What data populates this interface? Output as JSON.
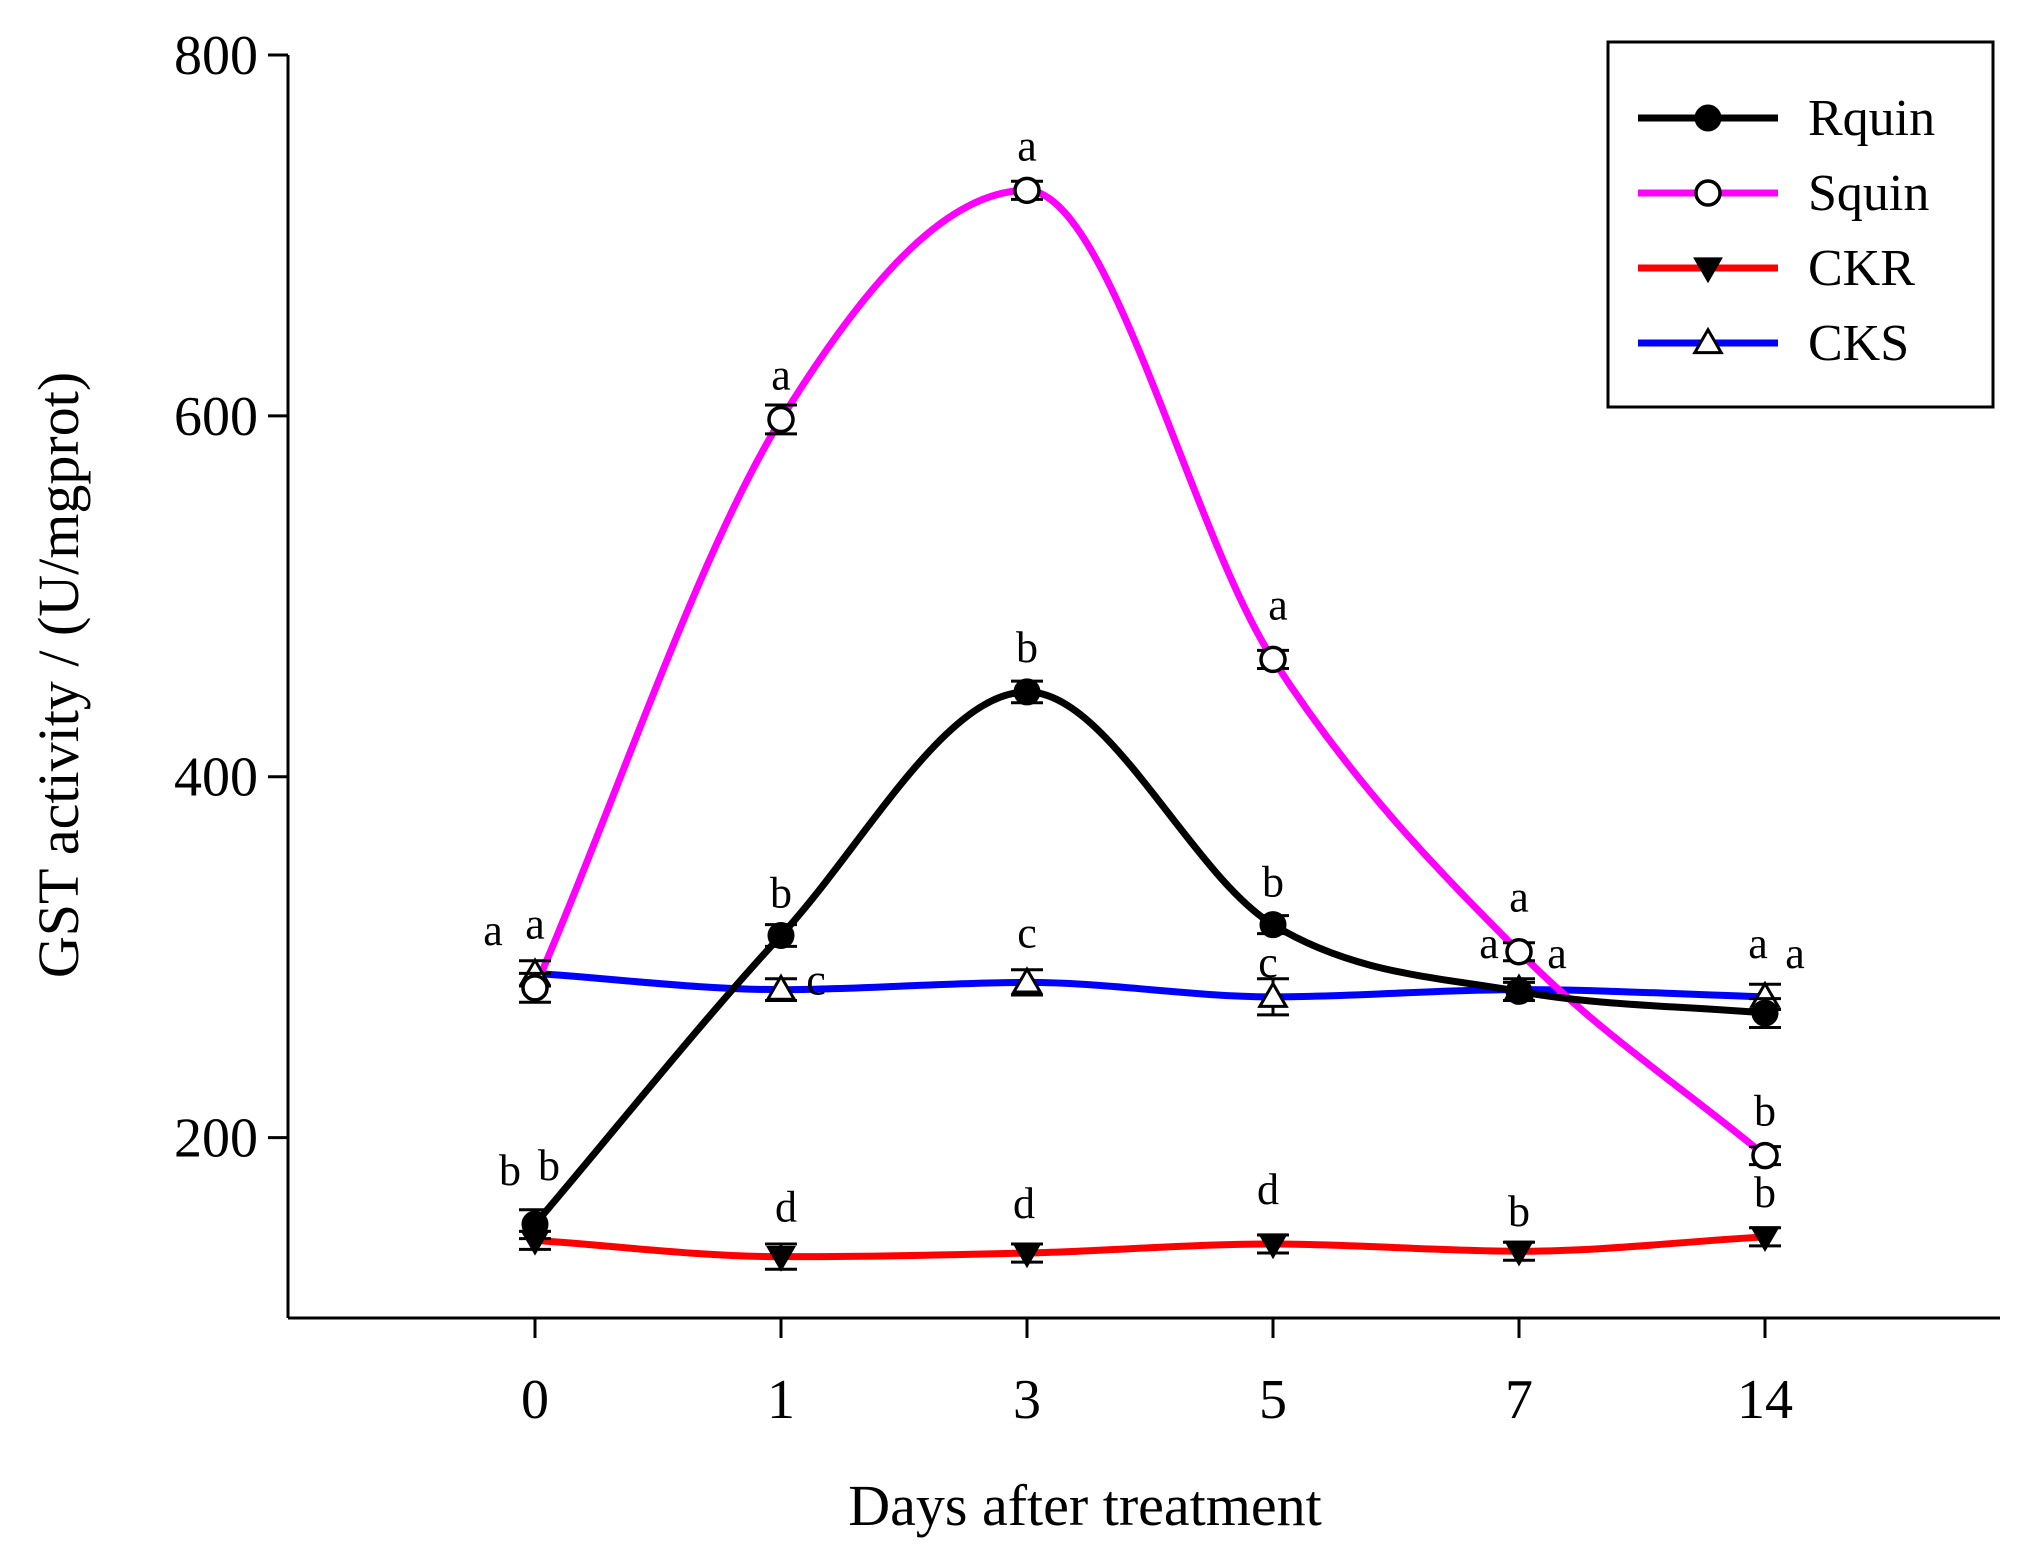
{
  "chart_data": {
    "type": "line",
    "title": "",
    "xlabel": "Days after treatment",
    "ylabel": "GST activity / (U/mgprot)",
    "categories": [
      "0",
      "1",
      "3",
      "5",
      "7",
      "14"
    ],
    "ylim": [
      100,
      800
    ],
    "yticks": [
      200,
      400,
      600,
      800
    ],
    "grid": false,
    "legend_position": "top-right",
    "series": [
      {
        "name": "Rquin",
        "color": "#000000",
        "marker": "filled-circle",
        "values": [
          152,
          312,
          447,
          318,
          281,
          269
        ],
        "errors": [
          8,
          6,
          6,
          5,
          5,
          8
        ],
        "labels": [
          "b",
          "b",
          "b",
          "b",
          "a",
          "a"
        ]
      },
      {
        "name": "Squin",
        "color": "#ff00ff",
        "marker": "open-circle",
        "values": [
          283,
          598,
          725,
          465,
          303,
          190
        ],
        "errors": [
          8,
          8,
          5,
          5,
          5,
          5
        ],
        "labels": [
          "a",
          "a",
          "a",
          "a",
          "a",
          "b"
        ]
      },
      {
        "name": "CKR",
        "color": "#ff0000",
        "marker": "filled-triangle-down",
        "values": [
          143,
          134,
          136,
          141,
          137,
          145
        ],
        "errors": [
          5,
          7,
          5,
          5,
          5,
          5
        ],
        "labels": [
          "b",
          "d",
          "d",
          "d",
          "b",
          "b"
        ]
      },
      {
        "name": "CKS",
        "color": "#0000ff",
        "marker": "open-triangle-up",
        "values": [
          291,
          282,
          286,
          278,
          282,
          278
        ],
        "errors": [
          7,
          6,
          7,
          10,
          6,
          7
        ],
        "labels": [
          "a",
          "c",
          "c",
          "c",
          "a",
          "a"
        ]
      }
    ]
  }
}
